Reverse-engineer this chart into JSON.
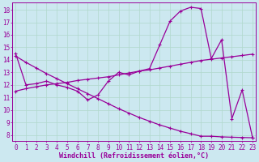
{
  "xlabel": "Windchill (Refroidissement éolien,°C)",
  "background_color": "#cce8f0",
  "line_color": "#990099",
  "grid_color": "#b0d8cc",
  "x_ticks": [
    0,
    1,
    2,
    3,
    4,
    5,
    6,
    7,
    8,
    9,
    10,
    11,
    12,
    13,
    14,
    15,
    16,
    17,
    18,
    19,
    20,
    21,
    22,
    23
  ],
  "y_ticks": [
    8,
    9,
    10,
    11,
    12,
    13,
    14,
    15,
    16,
    17,
    18
  ],
  "ylim": [
    7.5,
    18.6
  ],
  "xlim": [
    -0.3,
    23.3
  ],
  "series1_x": [
    0,
    1,
    2,
    3,
    4,
    5,
    6,
    7,
    8,
    9,
    10,
    11,
    12,
    13,
    14,
    15,
    16,
    17,
    18,
    19,
    20,
    21,
    22,
    23
  ],
  "series1_y": [
    14.5,
    12.0,
    12.1,
    12.3,
    12.0,
    11.8,
    11.5,
    10.8,
    11.2,
    12.3,
    13.0,
    12.8,
    13.1,
    13.3,
    15.2,
    17.1,
    17.9,
    18.2,
    18.1,
    14.1,
    15.6,
    9.3,
    11.6,
    7.8
  ],
  "series2_x": [
    0,
    1,
    2,
    3,
    4,
    5,
    6,
    7,
    8,
    9,
    10,
    11,
    12,
    13,
    14,
    15,
    16,
    17,
    18,
    19,
    20,
    21,
    22,
    23
  ],
  "series2_y": [
    11.5,
    11.7,
    11.85,
    12.0,
    12.1,
    12.2,
    12.35,
    12.45,
    12.55,
    12.65,
    12.8,
    12.95,
    13.1,
    13.2,
    13.35,
    13.5,
    13.65,
    13.8,
    13.95,
    14.05,
    14.15,
    14.25,
    14.35,
    14.45
  ],
  "series3_x": [
    0,
    1,
    2,
    3,
    4,
    5,
    6,
    7,
    8,
    9,
    10,
    11,
    12,
    13,
    14,
    15,
    16,
    17,
    18,
    19,
    20,
    21,
    22,
    23
  ],
  "series3_y": [
    14.3,
    13.8,
    13.35,
    12.9,
    12.5,
    12.1,
    11.7,
    11.3,
    10.9,
    10.5,
    10.1,
    9.75,
    9.4,
    9.1,
    8.8,
    8.55,
    8.3,
    8.1,
    7.9,
    7.9,
    7.85,
    7.82,
    7.8,
    7.78
  ],
  "tick_fontsize": 5.5,
  "label_fontsize": 6.0
}
